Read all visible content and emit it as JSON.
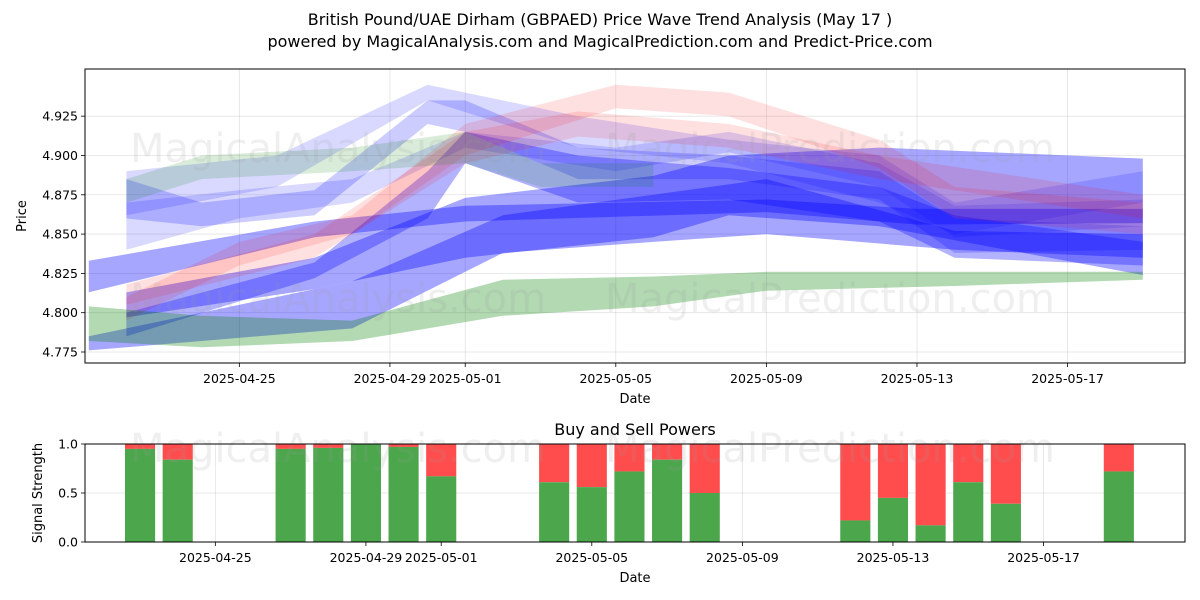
{
  "title_line1": "British Pound/UAE Dirham (GBPAED) Price Wave Trend Analysis (May 17 )",
  "title_line2": "powered by MagicalAnalysis.com and MagicalPrediction.com and Predict-Price.com",
  "watermark_left": "MagicalAnalysis.com",
  "watermark_right": "MagicalPrediction.com",
  "chart_data": [
    {
      "type": "area",
      "title": "",
      "xlabel": "Date",
      "ylabel": "Price",
      "grid": true,
      "xlim": [
        "2025-04-21",
        "2025-05-20"
      ],
      "ylim": [
        4.768,
        4.955
      ],
      "x_ticks": [
        "2025-04-25",
        "2025-04-29",
        "2025-05-01",
        "2025-05-05",
        "2025-05-09",
        "2025-05-13",
        "2025-05-17"
      ],
      "y_ticks": [
        4.775,
        4.8,
        4.825,
        4.85,
        4.875,
        4.9,
        4.925
      ],
      "y_tick_labels": [
        "4.775",
        "4.800",
        "4.825",
        "4.850",
        "4.875",
        "4.900",
        "4.925"
      ],
      "bands": [
        {
          "color": "#0000ff",
          "opacity": 0.35,
          "points": [
            [
              "2025-04-21",
              4.813,
              4.833
            ],
            [
              "2025-04-27",
              4.848,
              4.858
            ],
            [
              "2025-05-01",
              4.858,
              4.868
            ],
            [
              "2025-05-09",
              4.864,
              4.872
            ],
            [
              "2025-05-13",
              4.856,
              4.866
            ],
            [
              "2025-05-19",
              4.857,
              4.866
            ]
          ]
        },
        {
          "color": "#0000ff",
          "opacity": 0.35,
          "points": [
            [
              "2025-04-21",
              4.776,
              4.785
            ],
            [
              "2025-04-28",
              4.79,
              4.82
            ],
            [
              "2025-05-02",
              4.838,
              4.862
            ],
            [
              "2025-05-06",
              4.845,
              4.875
            ],
            [
              "2025-05-09",
              4.85,
              4.885
            ],
            [
              "2025-05-14",
              4.84,
              4.852
            ],
            [
              "2025-05-19",
              4.835,
              4.85
            ]
          ]
        },
        {
          "color": "#0000ff",
          "opacity": 0.35,
          "points": [
            [
              "2025-04-22",
              4.797,
              4.813
            ],
            [
              "2025-04-27",
              4.815,
              4.835
            ],
            [
              "2025-05-01",
              4.835,
              4.873
            ],
            [
              "2025-05-06",
              4.848,
              4.887
            ],
            [
              "2025-05-08",
              4.862,
              4.9
            ],
            [
              "2025-05-12",
              4.855,
              4.905
            ],
            [
              "2025-05-19",
              4.824,
              4.898
            ]
          ]
        },
        {
          "color": "#0000ff",
          "opacity": 0.3,
          "points": [
            [
              "2025-04-22",
              4.785,
              4.8
            ],
            [
              "2025-04-27",
              4.822,
              4.832
            ],
            [
              "2025-04-30",
              4.86,
              4.89
            ],
            [
              "2025-05-01",
              4.895,
              4.915
            ],
            [
              "2025-05-04",
              4.87,
              4.9
            ],
            [
              "2025-05-08",
              4.872,
              4.892
            ],
            [
              "2025-05-12",
              4.858,
              4.88
            ],
            [
              "2025-05-14",
              4.835,
              4.862
            ],
            [
              "2025-05-19",
              4.83,
              4.845
            ]
          ]
        },
        {
          "color": "#0000ff",
          "opacity": 0.2,
          "points": [
            [
              "2025-04-22",
              4.86,
              4.885
            ],
            [
              "2025-04-24",
              4.855,
              4.87
            ],
            [
              "2025-04-27",
              4.862,
              4.878
            ],
            [
              "2025-04-30",
              4.92,
              4.935
            ],
            [
              "2025-05-01",
              4.915,
              4.935
            ],
            [
              "2025-05-04",
              4.885,
              4.905
            ],
            [
              "2025-05-08",
              4.885,
              4.9
            ],
            [
              "2025-05-12",
              4.872,
              4.89
            ],
            [
              "2025-05-14",
              4.838,
              4.86
            ],
            [
              "2025-05-19",
              4.84,
              4.855
            ]
          ]
        },
        {
          "color": "#0000ff",
          "opacity": 0.15,
          "points": [
            [
              "2025-04-22",
              4.862,
              4.89
            ],
            [
              "2025-04-26",
              4.88,
              4.9
            ],
            [
              "2025-04-30",
              4.935,
              4.945
            ],
            [
              "2025-05-04",
              4.905,
              4.925
            ],
            [
              "2025-05-08",
              4.895,
              4.91
            ],
            [
              "2025-05-12",
              4.87,
              4.9
            ],
            [
              "2025-05-14",
              4.85,
              4.87
            ],
            [
              "2025-05-19",
              4.87,
              4.89
            ]
          ]
        },
        {
          "color": "#0000ff",
          "opacity": 0.15,
          "points": [
            [
              "2025-04-22",
              4.84,
              4.87
            ],
            [
              "2025-04-25",
              4.86,
              4.878
            ],
            [
              "2025-04-28",
              4.87,
              4.885
            ],
            [
              "2025-05-01",
              4.905,
              4.915
            ],
            [
              "2025-05-05",
              4.89,
              4.905
            ],
            [
              "2025-05-08",
              4.902,
              4.915
            ],
            [
              "2025-05-12",
              4.88,
              4.895
            ],
            [
              "2025-05-14",
              4.848,
              4.868
            ],
            [
              "2025-05-19",
              4.855,
              4.872
            ]
          ]
        },
        {
          "color": "#ff0000",
          "opacity": 0.12,
          "points": [
            [
              "2025-04-22",
              4.795,
              4.81
            ],
            [
              "2025-04-25",
              4.83,
              4.845
            ],
            [
              "2025-04-28",
              4.85,
              4.862
            ],
            [
              "2025-05-01",
              4.9,
              4.92
            ],
            [
              "2025-05-05",
              4.93,
              4.945
            ],
            [
              "2025-05-08",
              4.925,
              4.94
            ],
            [
              "2025-05-12",
              4.892,
              4.91
            ],
            [
              "2025-05-14",
              4.86,
              4.88
            ],
            [
              "2025-05-19",
              4.85,
              4.87
            ]
          ]
        },
        {
          "color": "#ff0000",
          "opacity": 0.12,
          "points": [
            [
              "2025-04-22",
              4.805,
              4.818
            ],
            [
              "2025-04-27",
              4.835,
              4.85
            ],
            [
              "2025-05-01",
              4.895,
              4.915
            ],
            [
              "2025-05-04",
              4.912,
              4.928
            ],
            [
              "2025-05-08",
              4.905,
              4.92
            ],
            [
              "2025-05-12",
              4.885,
              4.9
            ],
            [
              "2025-05-19",
              4.86,
              4.875
            ]
          ]
        },
        {
          "color": "#008000",
          "opacity": 0.3,
          "points": [
            [
              "2025-04-21",
              4.782,
              4.804
            ],
            [
              "2025-04-24",
              4.778,
              4.798
            ],
            [
              "2025-04-28",
              4.782,
              4.795
            ],
            [
              "2025-05-02",
              4.798,
              4.821
            ],
            [
              "2025-05-06",
              4.804,
              4.823
            ],
            [
              "2025-05-09",
              4.814,
              4.826
            ],
            [
              "2025-05-14",
              4.817,
              4.826
            ],
            [
              "2025-05-19",
              4.821,
              4.826
            ]
          ]
        },
        {
          "color": "#008000",
          "opacity": 0.15,
          "points": [
            [
              "2025-04-22",
              4.87,
              4.885
            ],
            [
              "2025-04-24",
              4.885,
              4.9
            ],
            [
              "2025-04-28",
              4.89,
              4.905
            ],
            [
              "2025-05-01",
              4.895,
              4.915
            ],
            [
              "2025-05-03",
              4.88,
              4.895
            ],
            [
              "2025-05-06",
              4.88,
              4.895
            ]
          ]
        }
      ]
    },
    {
      "type": "bar",
      "title": "Buy and Sell Powers",
      "xlabel": "Date",
      "ylabel": "Signal Strength",
      "ylim": [
        0,
        1
      ],
      "y_ticks": [
        0.0,
        0.5,
        1.0
      ],
      "y_tick_labels": [
        "0.0",
        "0.5",
        "1.0"
      ],
      "x_ticks": [
        "2025-04-25",
        "2025-04-29",
        "2025-05-01",
        "2025-05-05",
        "2025-05-09",
        "2025-05-13",
        "2025-05-17"
      ],
      "xlim": [
        "2025-04-21",
        "2025-05-20"
      ],
      "series_names": [
        "Buy",
        "Sell"
      ],
      "colors": {
        "buy": "#4ca64c",
        "sell": "#ff4d4d"
      },
      "dates": [
        "2025-04-23",
        "2025-04-24",
        "2025-04-27",
        "2025-04-28",
        "2025-04-29",
        "2025-04-30",
        "2025-05-01",
        "2025-05-04",
        "2025-05-05",
        "2025-05-06",
        "2025-05-07",
        "2025-05-08",
        "2025-05-12",
        "2025-05-13",
        "2025-05-14",
        "2025-05-15",
        "2025-05-16",
        "2025-05-19"
      ],
      "buy": [
        0.95,
        0.84,
        0.95,
        0.96,
        1.0,
        0.97,
        0.67,
        0.61,
        0.56,
        0.72,
        0.84,
        0.5,
        0.22,
        0.45,
        0.17,
        0.61,
        0.39,
        0.72
      ]
    }
  ]
}
